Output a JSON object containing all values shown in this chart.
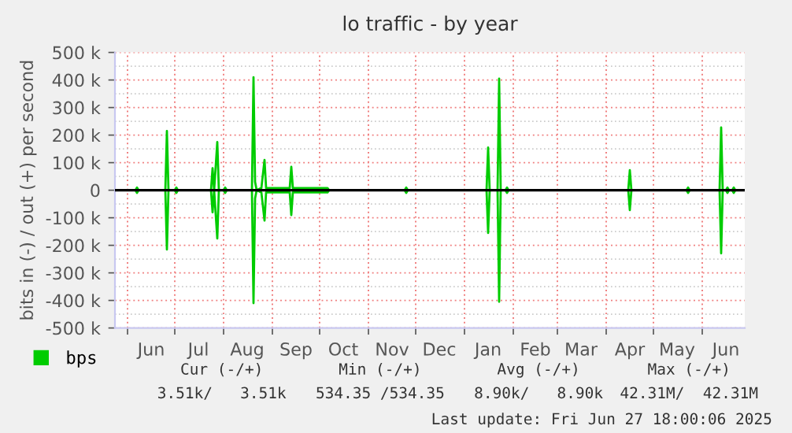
{
  "chart_data": {
    "type": "line",
    "title": "lo traffic - by year",
    "ylabel": "bits in (-) / out (+) per second",
    "x": [
      "2024-05-24",
      "2024-06-06",
      "2024-06-07",
      "2024-06-08",
      "2024-06-25",
      "2024-06-26",
      "2024-06-27",
      "2024-07-01",
      "2024-07-02",
      "2024-07-03",
      "2024-07-24",
      "2024-07-25",
      "2024-07-26",
      "2024-07-28",
      "2024-07-29",
      "2024-08-01",
      "2024-08-02",
      "2024-08-03",
      "2024-08-19",
      "2024-08-20",
      "2024-08-21",
      "2024-08-22",
      "2024-08-25",
      "2024-08-27",
      "2024-08-28",
      "2024-09-12",
      "2024-09-13",
      "2024-09-14",
      "2024-10-06",
      "2024-10-07",
      "2024-11-24",
      "2024-11-25",
      "2024-11-26",
      "2025-01-15",
      "2025-01-16",
      "2025-01-17",
      "2025-01-22",
      "2025-01-23",
      "2025-01-24",
      "2025-01-27",
      "2025-01-28",
      "2025-01-29",
      "2025-04-15",
      "2025-04-16",
      "2025-04-17",
      "2025-05-22",
      "2025-05-23",
      "2025-05-24",
      "2025-06-12",
      "2025-06-13",
      "2025-06-14",
      "2025-06-16",
      "2025-06-17",
      "2025-06-18",
      "2025-06-20",
      "2025-06-21",
      "2025-06-22",
      "2025-06-28"
    ],
    "series": [
      {
        "name": "bps",
        "color": "#00cc00",
        "values": [
          0,
          0,
          10000,
          0,
          0,
          215000,
          0,
          0,
          10000,
          0,
          0,
          80000,
          0,
          175000,
          0,
          0,
          10000,
          0,
          0,
          410000,
          30000,
          0,
          8000,
          110000,
          8000,
          8000,
          85000,
          8000,
          8000,
          0,
          0,
          10000,
          0,
          0,
          155000,
          0,
          0,
          405000,
          0,
          0,
          10000,
          0,
          0,
          73000,
          0,
          0,
          10000,
          0,
          0,
          228000,
          0,
          0,
          10000,
          0,
          0,
          10000,
          0,
          0
        ]
      },
      {
        "color": "#00cc00",
        "values": [
          0,
          0,
          -10000,
          0,
          0,
          -215000,
          0,
          0,
          -10000,
          0,
          0,
          -80000,
          0,
          -175000,
          0,
          0,
          -10000,
          0,
          0,
          -410000,
          -30000,
          0,
          -8000,
          -110000,
          -8000,
          -8000,
          -90000,
          -8000,
          -8000,
          0,
          0,
          -10000,
          0,
          0,
          -155000,
          0,
          0,
          -405000,
          0,
          0,
          -10000,
          0,
          0,
          -72000,
          0,
          0,
          -10000,
          0,
          0,
          -229000,
          0,
          0,
          -10000,
          0,
          0,
          -10000,
          0,
          0
        ]
      }
    ],
    "xlim": [
      "2024-05-24",
      "2025-06-28"
    ],
    "xticks": [
      {
        "value": "2024-06-01",
        "label": null
      },
      {
        "value": "2024-06-16",
        "label": "Jun"
      },
      {
        "value": "2024-07-01",
        "label": null
      },
      {
        "value": "2024-07-16",
        "label": "Jul"
      },
      {
        "value": "2024-08-01",
        "label": null
      },
      {
        "value": "2024-08-16",
        "label": "Aug"
      },
      {
        "value": "2024-09-01",
        "label": null
      },
      {
        "value": "2024-09-16",
        "label": "Sep"
      },
      {
        "value": "2024-10-01",
        "label": null
      },
      {
        "value": "2024-10-16",
        "label": "Oct"
      },
      {
        "value": "2024-11-01",
        "label": null
      },
      {
        "value": "2024-11-16",
        "label": "Nov"
      },
      {
        "value": "2024-12-01",
        "label": null
      },
      {
        "value": "2024-12-16",
        "label": "Dec"
      },
      {
        "value": "2025-01-01",
        "label": null
      },
      {
        "value": "2025-01-16",
        "label": "Jan"
      },
      {
        "value": "2025-02-01",
        "label": null
      },
      {
        "value": "2025-02-15",
        "label": "Feb"
      },
      {
        "value": "2025-03-01",
        "label": null
      },
      {
        "value": "2025-03-16",
        "label": "Mar"
      },
      {
        "value": "2025-04-01",
        "label": null
      },
      {
        "value": "2025-04-16",
        "label": "Apr"
      },
      {
        "value": "2025-05-01",
        "label": null
      },
      {
        "value": "2025-05-16",
        "label": "May"
      },
      {
        "value": "2025-06-01",
        "label": null
      },
      {
        "value": "2025-06-16",
        "label": "Jun"
      }
    ],
    "ylim": [
      -500000,
      500000
    ],
    "yticks": [
      {
        "value": -500000,
        "label": "-500 k"
      },
      {
        "value": -400000,
        "label": "-400 k"
      },
      {
        "value": -300000,
        "label": "-300 k"
      },
      {
        "value": -200000,
        "label": "-200 k"
      },
      {
        "value": -100000,
        "label": "-100 k"
      },
      0,
      {
        "value": 100000,
        "label": "100 k"
      },
      {
        "value": 200000,
        "label": "200 k"
      },
      {
        "value": 300000,
        "label": "300 k"
      },
      {
        "value": 400000,
        "label": "400 k"
      },
      {
        "value": 500000,
        "label": "500 k"
      }
    ],
    "ref_lines": [
      {
        "axis": "y",
        "value": 0,
        "color": "#000000"
      }
    ],
    "grid": true,
    "legend": "bottom left",
    "marker": "none",
    "line_style": "solid",
    "annotations": [
      "Cur (-/+)",
      "Min (-/+)",
      "Avg (-/+)",
      "Max (-/+)",
      "3.51k/   3.51k",
      "534.35 /534.35",
      "8.90k/   8.90k",
      "42.31M/  42.31M",
      "Last update: Fri Jun 27 18:00:06 2025"
    ]
  }
}
